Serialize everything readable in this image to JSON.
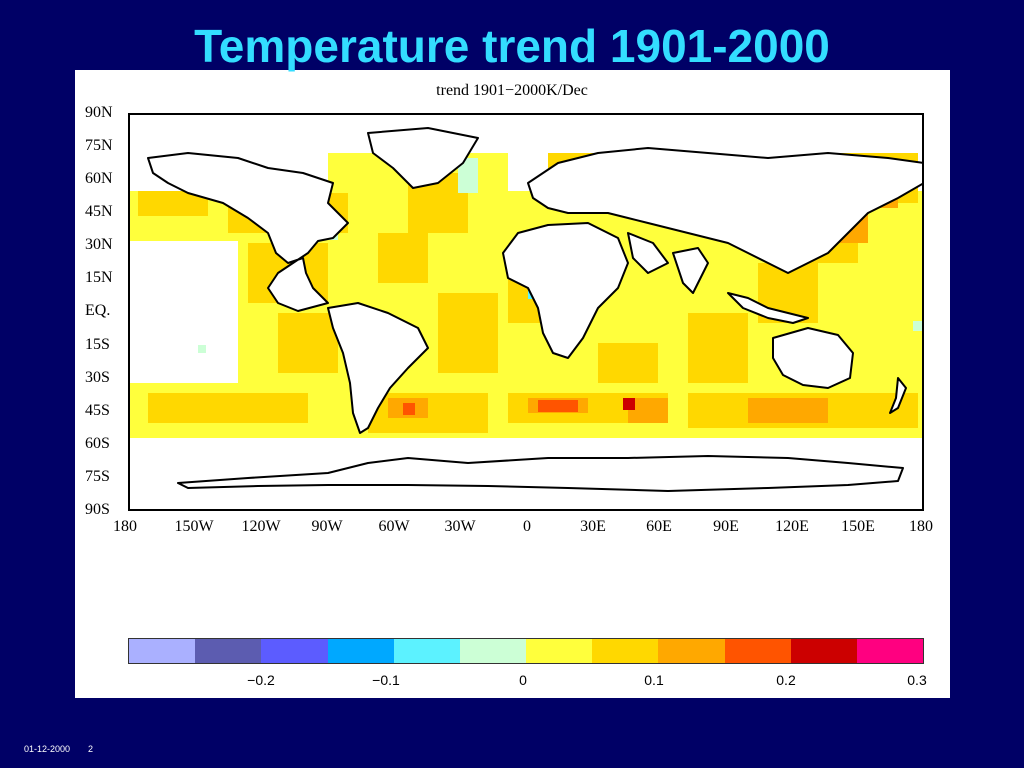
{
  "slide": {
    "title": "Temperature trend 1901-2000",
    "footer_date": "01-12-2000",
    "page_number": "2"
  },
  "map": {
    "title": "trend 1901−2000K/Dec",
    "lat_labels": [
      "90N",
      "75N",
      "60N",
      "45N",
      "30N",
      "15N",
      "EQ.",
      "15S",
      "30S",
      "45S",
      "60S",
      "75S",
      "90S"
    ],
    "lon_labels": [
      "180",
      "150W",
      "120W",
      "90W",
      "60W",
      "30W",
      "0",
      "30E",
      "60E",
      "90E",
      "120E",
      "150E",
      "180"
    ]
  },
  "colorbar": {
    "colors": [
      "#aab0ff",
      "#5c5cb0",
      "#5c5cff",
      "#00a8ff",
      "#5cf2ff",
      "#ccffd6",
      "#ffff3c",
      "#ffd800",
      "#ffa800",
      "#ff5400",
      "#cc0000",
      "#ff0080"
    ],
    "labels": [
      "−0.2",
      "−0.1",
      "0",
      "0.1",
      "0.2",
      "0.3"
    ]
  },
  "colors": {
    "background": "#000066",
    "title": "#33ddff"
  }
}
